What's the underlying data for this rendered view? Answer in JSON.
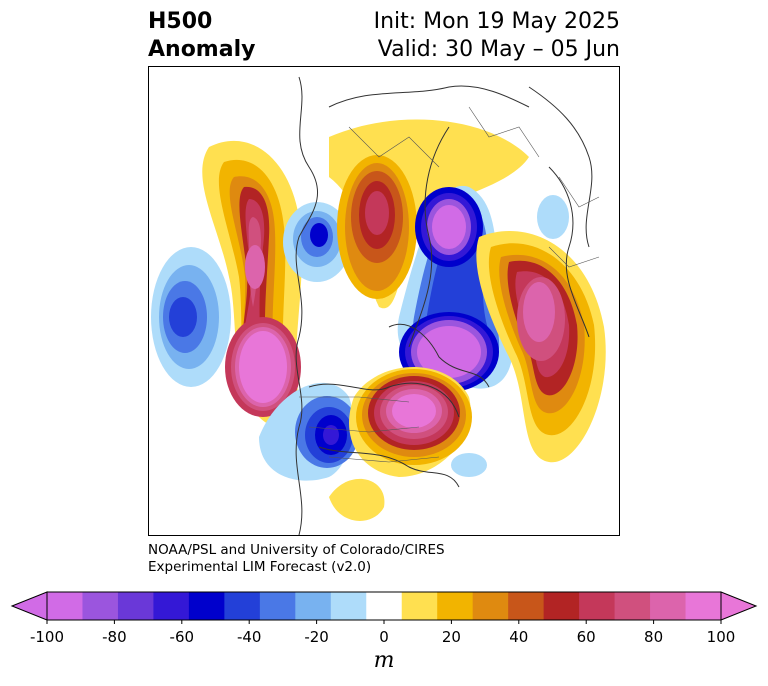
{
  "title": {
    "left_line1": "H500",
    "left_line2": "Anomaly",
    "right_line1": "Init: Mon 19 May 2025",
    "right_line2": "Valid: 30 May – 05 Jun"
  },
  "credit": {
    "line1": "NOAA/PSL and University of Colorado/CIRES",
    "line2": "Experimental LIM Forecast (v2.0)"
  },
  "colorbar": {
    "unit": "m",
    "ticks": [
      "-100",
      "-80",
      "-60",
      "-40",
      "-20",
      "0",
      "20",
      "40",
      "60",
      "80",
      "100"
    ],
    "colors": [
      "#d16be6",
      "#9b55de",
      "#6a38d8",
      "#3418d6",
      "#0000cc",
      "#2340d8",
      "#4a78e6",
      "#78b2f0",
      "#aedcfa",
      "#ffffff",
      "#ffe050",
      "#f2b400",
      "#df8a10",
      "#c8561a",
      "#b22424",
      "#c4385a",
      "#d0507e",
      "#dc64ac",
      "#e876d8"
    ],
    "under_color": "#d16be6",
    "over_color": "#e876d8"
  }
}
